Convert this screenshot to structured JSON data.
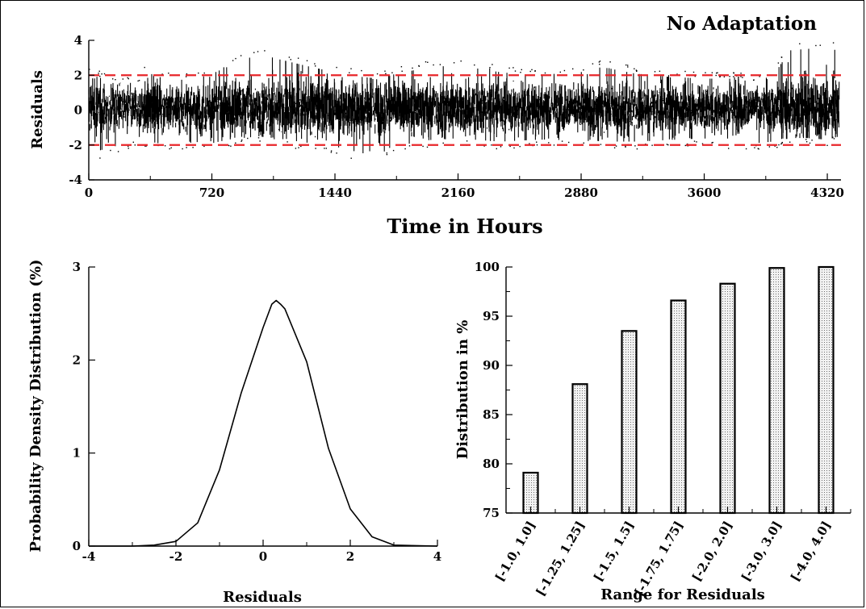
{
  "chart_data": [
    {
      "type": "scatter",
      "title": "No Adaptation",
      "xlabel": "Time in Hours",
      "ylabel": "Residuals",
      "xlim": [
        0,
        4400
      ],
      "ylim": [
        -4,
        4
      ],
      "xticks": [
        "0",
        "720",
        "1440",
        "2160",
        "2880",
        "3600",
        "4320"
      ],
      "yticks": [
        "-4",
        "-2",
        "0",
        "2",
        "4"
      ],
      "reference_lines": [
        2,
        -2
      ],
      "reference_line_color": "#e8262a",
      "series_color": "#000000",
      "envelope": {
        "x": [
          0,
          150,
          300,
          330,
          400,
          600,
          720,
          900,
          1000,
          1100,
          1300,
          1440,
          1600,
          1700,
          1800,
          2000,
          2160,
          2400,
          2600,
          2880,
          3000,
          3200,
          3400,
          3600,
          3800,
          3900,
          4000,
          4100,
          4200,
          4320,
          4390
        ],
        "upper": [
          2.2,
          1.6,
          1.7,
          2.5,
          1.9,
          1.8,
          2.2,
          3.0,
          3.4,
          3.1,
          2.6,
          2.3,
          2.0,
          1.9,
          2.2,
          2.6,
          2.7,
          2.3,
          2.1,
          2.3,
          2.6,
          2.2,
          2.0,
          1.9,
          1.9,
          1.6,
          2.0,
          3.6,
          3.7,
          3.7,
          3.6
        ],
        "lower": [
          -2.6,
          -2.2,
          -1.6,
          -1.8,
          -2.0,
          -1.9,
          -2.0,
          -1.6,
          -1.5,
          -1.7,
          -2.0,
          -2.2,
          -2.6,
          -2.7,
          -2.0,
          -1.8,
          -1.7,
          -1.9,
          -1.8,
          -1.7,
          -1.9,
          -1.9,
          -1.8,
          -1.7,
          -2.2,
          -2.0,
          -1.9,
          -1.6,
          -1.6,
          -1.7,
          -1.5
        ]
      }
    },
    {
      "type": "line",
      "xlabel": "Residuals",
      "ylabel": "Probability Density Distribution (%)",
      "xlim": [
        -4,
        4
      ],
      "ylim": [
        0,
        3
      ],
      "xticks": [
        "-4",
        "-2",
        "0",
        "2",
        "4"
      ],
      "yticks": [
        "0",
        "1",
        "2",
        "3"
      ],
      "series_color": "#000000",
      "x": [
        -4,
        -3,
        -2.5,
        -2,
        -1.5,
        -1,
        -0.5,
        0,
        0.2,
        0.3,
        0.4,
        0.5,
        1,
        1.5,
        2,
        2.5,
        3,
        4
      ],
      "y": [
        0,
        0,
        0.01,
        0.05,
        0.25,
        0.82,
        1.65,
        2.35,
        2.6,
        2.64,
        2.6,
        2.55,
        1.98,
        1.05,
        0.4,
        0.1,
        0.01,
        0
      ]
    },
    {
      "type": "bar",
      "xlabel": "Range for Residuals",
      "ylabel": "Distribution in %",
      "ylim": [
        75,
        100
      ],
      "yticks": [
        "75",
        "80",
        "85",
        "90",
        "95",
        "100"
      ],
      "categories": [
        "[-1.0, 1.0]",
        "[-1.25, 1.25]",
        "[-1.5, 1.5]",
        "[-1.75, 1.75]",
        "[-2.0, 2.0]",
        "[-3.0, 3.0]",
        "[-4.0, 4.0]"
      ],
      "values": [
        79.1,
        88.1,
        93.5,
        96.6,
        98.3,
        99.9,
        100.0
      ],
      "bar_fill": "#cfcfcf"
    }
  ]
}
